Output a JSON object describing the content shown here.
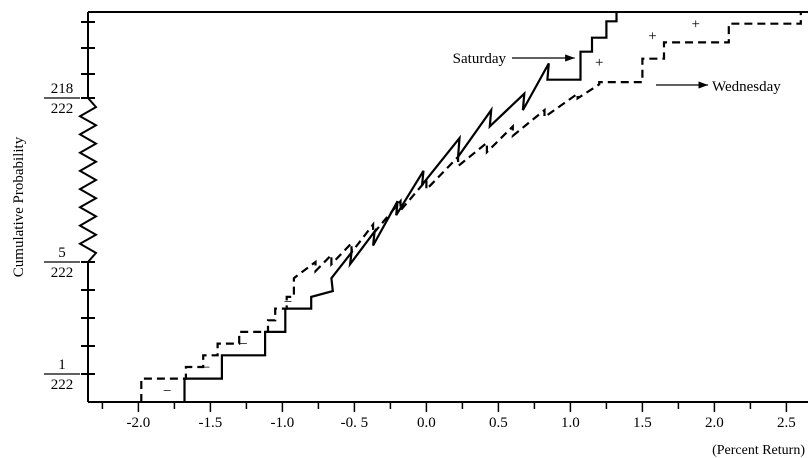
{
  "chart_data": {
    "type": "line",
    "title": "",
    "xlabel": "(Percent Return)",
    "ylabel": "Cumulative Probability",
    "xlim": [
      -2.35,
      2.65
    ],
    "x_ticks": [
      {
        "value": -2.0,
        "label": "-2.0"
      },
      {
        "value": -1.5,
        "label": "-1.5"
      },
      {
        "value": -1.0,
        "label": "-1.0"
      },
      {
        "value": -0.5,
        "label": "-0. 5"
      },
      {
        "value": 0.0,
        "label": "0.0"
      },
      {
        "value": 0.5,
        "label": "0.5"
      },
      {
        "value": 1.0,
        "label": "1.0"
      },
      {
        "value": 1.5,
        "label": "1.5"
      },
      {
        "value": 2.0,
        "label": "2.0"
      },
      {
        "value": 2.5,
        "label": "2.5"
      }
    ],
    "y_tick_labels": [
      {
        "level": 1,
        "numerator": "1",
        "denominator": "222"
      },
      {
        "level": 5,
        "numerator": "5",
        "denominator": "222"
      },
      {
        "level": 218,
        "numerator": "218",
        "denominator": "222"
      }
    ],
    "y_axis_break": "between 5/222 and 218/222",
    "grid": false,
    "series": [
      {
        "name": "Saturday",
        "style": "solid",
        "points": [
          [
            -1.68,
            0.0
          ],
          [
            -1.68,
            1.0
          ],
          [
            -1.42,
            1.0
          ],
          [
            -1.42,
            2.0
          ],
          [
            -1.12,
            2.0
          ],
          [
            -1.12,
            3.0
          ],
          [
            -0.98,
            3.0
          ],
          [
            -0.98,
            4.0
          ],
          [
            -0.8,
            4.0
          ],
          [
            -0.8,
            4.5
          ],
          [
            -0.65,
            4.75
          ],
          [
            -0.66,
            5.3
          ],
          [
            -0.52,
            6.4
          ],
          [
            -0.53,
            5.9
          ],
          [
            -0.36,
            7.3
          ],
          [
            -0.37,
            6.7
          ],
          [
            -0.2,
            8.6
          ],
          [
            -0.21,
            8.0
          ],
          [
            -0.02,
            9.9
          ],
          [
            -0.03,
            9.3
          ],
          [
            0.23,
            11.3
          ],
          [
            0.22,
            10.5
          ],
          [
            0.45,
            12.5
          ],
          [
            0.44,
            11.8
          ],
          [
            0.68,
            13.2
          ],
          [
            0.67,
            12.5
          ],
          [
            0.85,
            14.5
          ],
          [
            0.84,
            13.8
          ],
          [
            1.07,
            13.8
          ],
          [
            1.07,
            15.0
          ],
          [
            1.15,
            15.0
          ],
          [
            1.15,
            15.6
          ],
          [
            1.25,
            15.6
          ],
          [
            1.25,
            16.3
          ],
          [
            1.32,
            16.3
          ],
          [
            1.32,
            16.7
          ]
        ]
      },
      {
        "name": "Wednesday",
        "style": "dashed",
        "points": [
          [
            -1.98,
            0.0
          ],
          [
            -1.98,
            1.0
          ],
          [
            -1.67,
            1.0
          ],
          [
            -1.67,
            1.5
          ],
          [
            -1.55,
            1.5
          ],
          [
            -1.55,
            2.0
          ],
          [
            -1.45,
            2.0
          ],
          [
            -1.45,
            2.5
          ],
          [
            -1.3,
            2.5
          ],
          [
            -1.3,
            3.0
          ],
          [
            -1.1,
            3.0
          ],
          [
            -1.1,
            3.5
          ],
          [
            -1.05,
            3.5
          ],
          [
            -1.05,
            4.0
          ],
          [
            -0.97,
            4.0
          ],
          [
            -0.97,
            4.5
          ],
          [
            -0.92,
            4.5
          ],
          [
            -0.92,
            5.3
          ],
          [
            -0.77,
            6.0
          ],
          [
            -0.77,
            5.6
          ],
          [
            -0.66,
            6.3
          ],
          [
            -0.66,
            5.9
          ],
          [
            -0.52,
            6.8
          ],
          [
            -0.52,
            6.4
          ],
          [
            -0.37,
            7.6
          ],
          [
            -0.37,
            7.2
          ],
          [
            -0.18,
            8.6
          ],
          [
            -0.18,
            8.2
          ],
          [
            0.0,
            9.5
          ],
          [
            0.0,
            9.1
          ],
          [
            0.22,
            10.5
          ],
          [
            0.22,
            10.1
          ],
          [
            0.42,
            11.1
          ],
          [
            0.42,
            10.7
          ],
          [
            0.6,
            11.8
          ],
          [
            0.6,
            11.4
          ],
          [
            0.82,
            12.5
          ],
          [
            0.82,
            12.2
          ],
          [
            1.05,
            13.2
          ],
          [
            1.05,
            13.0
          ],
          [
            1.2,
            13.6
          ],
          [
            1.2,
            13.7
          ],
          [
            1.3,
            13.7
          ],
          [
            1.5,
            13.7
          ],
          [
            1.5,
            14.7
          ],
          [
            1.65,
            14.7
          ],
          [
            1.65,
            15.4
          ],
          [
            2.1,
            15.4
          ],
          [
            2.1,
            16.2
          ],
          [
            2.6,
            16.2
          ],
          [
            2.6,
            16.7
          ]
        ]
      }
    ],
    "annotations": [
      {
        "text": "Saturday",
        "arrow_to": [
          1.03,
          15.8
        ]
      },
      {
        "text": "Wednesday",
        "arrow_from": [
          1.7,
          14.2
        ]
      },
      {
        "text": "+",
        "at": [
          1.2,
          14.55
        ]
      },
      {
        "text": "+",
        "at": [
          1.57,
          15.7
        ]
      },
      {
        "text": "+",
        "at": [
          1.87,
          16.2
        ]
      },
      {
        "text": "−",
        "at": [
          -1.8,
          0.5
        ]
      },
      {
        "text": "−",
        "at": [
          -1.53,
          1.5
        ]
      },
      {
        "text": "−",
        "at": [
          -1.27,
          2.5
        ]
      },
      {
        "text": "−",
        "at": [
          -1.08,
          3.5
        ]
      },
      {
        "text": "−",
        "at": [
          -0.96,
          4.3
        ]
      }
    ]
  }
}
